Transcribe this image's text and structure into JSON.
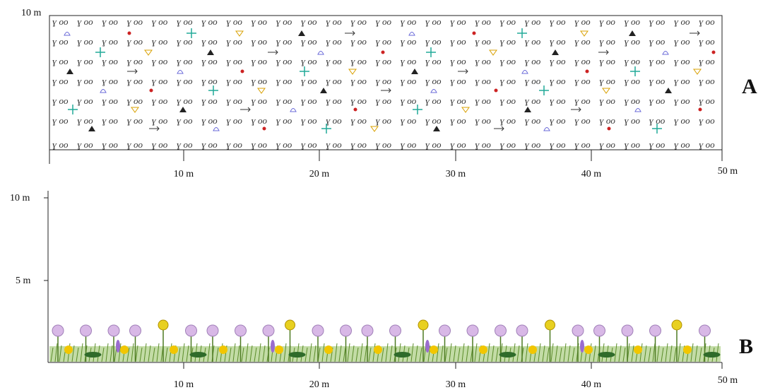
{
  "panel_a": {
    "label": "A",
    "y_label": "10 m",
    "pattern_unit": "ɣ oo",
    "x_labels": [
      "10 m",
      "20 m",
      "30 m",
      "40 m",
      "50 m"
    ]
  },
  "panel_b": {
    "label": "B",
    "y_labels": [
      "10 m",
      "5 m"
    ],
    "x_labels": [
      "10 m",
      "20 m",
      "30 m",
      "40 m",
      "50 m"
    ]
  }
}
